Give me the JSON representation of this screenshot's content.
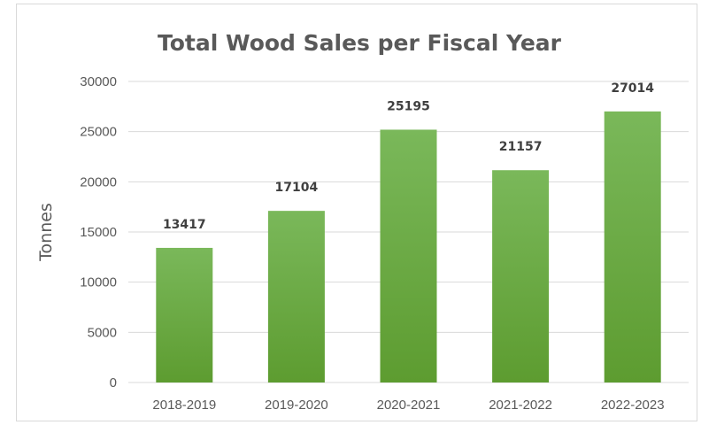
{
  "chart_data": {
    "type": "bar",
    "title": "Total Wood Sales per Fiscal Year",
    "xlabel": "",
    "ylabel": "Tonnes",
    "categories": [
      "2018-2019",
      "2019-2020",
      "2020-2021",
      "2021-2022",
      "2022-2023"
    ],
    "values": [
      13417,
      17104,
      25195,
      21157,
      27014
    ],
    "ylim": [
      0,
      30000
    ],
    "yticks": [
      0,
      5000,
      10000,
      15000,
      20000,
      25000,
      30000
    ],
    "grid": true,
    "legend": "none",
    "colors": {
      "bar_top": "#7ab85a",
      "bar_bottom": "#5d9c30",
      "grid": "#d9d9d9"
    }
  }
}
